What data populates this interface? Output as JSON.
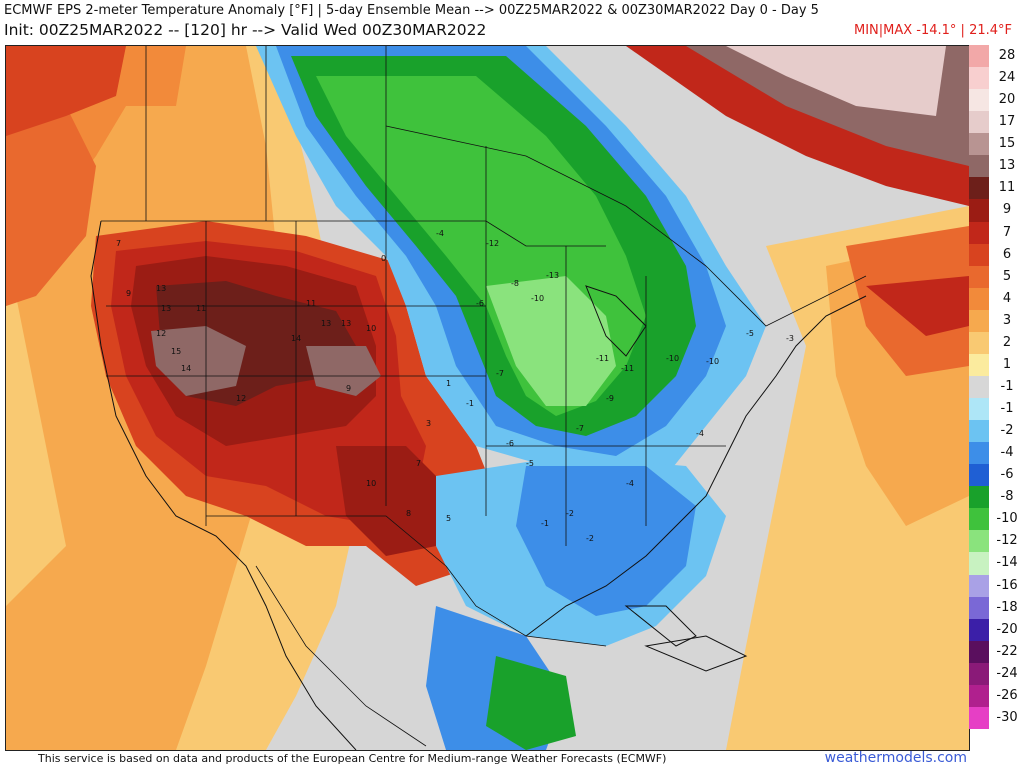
{
  "header": {
    "line1": "ECMWF EPS 2-meter Temperature Anomaly [°F] | 5-day Ensemble Mean --> 00Z25MAR2022 & 00Z30MAR2022   Day 0 - Day 5",
    "line2": "Init: 00Z25MAR2022 -- [120] hr --> Valid Wed 00Z30MAR2022",
    "minmax": "MIN|MAX -14.1° | 21.4°F"
  },
  "legend": [
    {
      "label": "28",
      "color": "#f2a8a8"
    },
    {
      "label": "24",
      "color": "#f8cfcf"
    },
    {
      "label": "20",
      "color": "#f6e6e3"
    },
    {
      "label": "17",
      "color": "#e6cccb"
    },
    {
      "label": "15",
      "color": "#b89492"
    },
    {
      "label": "13",
      "color": "#8f6866"
    },
    {
      "label": "11",
      "color": "#6d1f1a"
    },
    {
      "label": "9",
      "color": "#9b1c14"
    },
    {
      "label": "7",
      "color": "#c1271a"
    },
    {
      "label": "6",
      "color": "#d8431f"
    },
    {
      "label": "5",
      "color": "#e9692e"
    },
    {
      "label": "4",
      "color": "#f28a3a"
    },
    {
      "label": "3",
      "color": "#f6a94e"
    },
    {
      "label": "2",
      "color": "#f9c972"
    },
    {
      "label": "1",
      "color": "#fbeb9e"
    },
    {
      "label": "-1",
      "color": "#d7d7d7"
    },
    {
      "label": "-1",
      "color": "#aee6f7"
    },
    {
      "label": "-2",
      "color": "#6cc3f2"
    },
    {
      "label": "-4",
      "color": "#3d8ee8"
    },
    {
      "label": "-6",
      "color": "#1f5fd4"
    },
    {
      "label": "-8",
      "color": "#19a12b"
    },
    {
      "label": "-10",
      "color": "#3fc23c"
    },
    {
      "label": "-12",
      "color": "#8ae37d"
    },
    {
      "label": "-14",
      "color": "#c8f2c1"
    },
    {
      "label": "-16",
      "color": "#a9a1e6"
    },
    {
      "label": "-18",
      "color": "#7a68d6"
    },
    {
      "label": "-20",
      "color": "#3b1fa8"
    },
    {
      "label": "-22",
      "color": "#5a0f5e"
    },
    {
      "label": "-24",
      "color": "#8a1a78"
    },
    {
      "label": "-26",
      "color": "#b0208e"
    },
    {
      "label": "-30",
      "color": "#e63fc5"
    }
  ],
  "map_values": [
    {
      "text": "13"
    },
    {
      "text": "13"
    },
    {
      "text": "11"
    },
    {
      "text": "12"
    },
    {
      "text": "15"
    },
    {
      "text": "14"
    },
    {
      "text": "12"
    },
    {
      "text": "11"
    },
    {
      "text": "13"
    },
    {
      "text": "13"
    },
    {
      "text": "14"
    },
    {
      "text": "10"
    },
    {
      "text": "9"
    },
    {
      "text": "7"
    },
    {
      "text": "9"
    },
    {
      "text": "10"
    },
    {
      "text": "8"
    },
    {
      "text": "5"
    },
    {
      "text": "7"
    },
    {
      "text": "3"
    },
    {
      "text": "1"
    },
    {
      "text": "-1"
    },
    {
      "text": "-4"
    },
    {
      "text": "-6"
    },
    {
      "text": "-8"
    },
    {
      "text": "-10"
    },
    {
      "text": "-13"
    },
    {
      "text": "-11"
    },
    {
      "text": "-11"
    },
    {
      "text": "-10"
    },
    {
      "text": "-10"
    },
    {
      "text": "-9"
    },
    {
      "text": "-7"
    },
    {
      "text": "-5"
    },
    {
      "text": "-4"
    },
    {
      "text": "-2"
    },
    {
      "text": "-3"
    },
    {
      "text": "-5"
    },
    {
      "text": "-6"
    },
    {
      "text": "-4"
    },
    {
      "text": "-2"
    },
    {
      "text": "-1"
    },
    {
      "text": "0"
    },
    {
      "text": "-12"
    },
    {
      "text": "-7"
    }
  ],
  "footer": {
    "credit": "This service is based on data and products of the European Centre for Medium-range Weather Forecasts (ECMWF)",
    "brand": "weathermodels.com"
  }
}
